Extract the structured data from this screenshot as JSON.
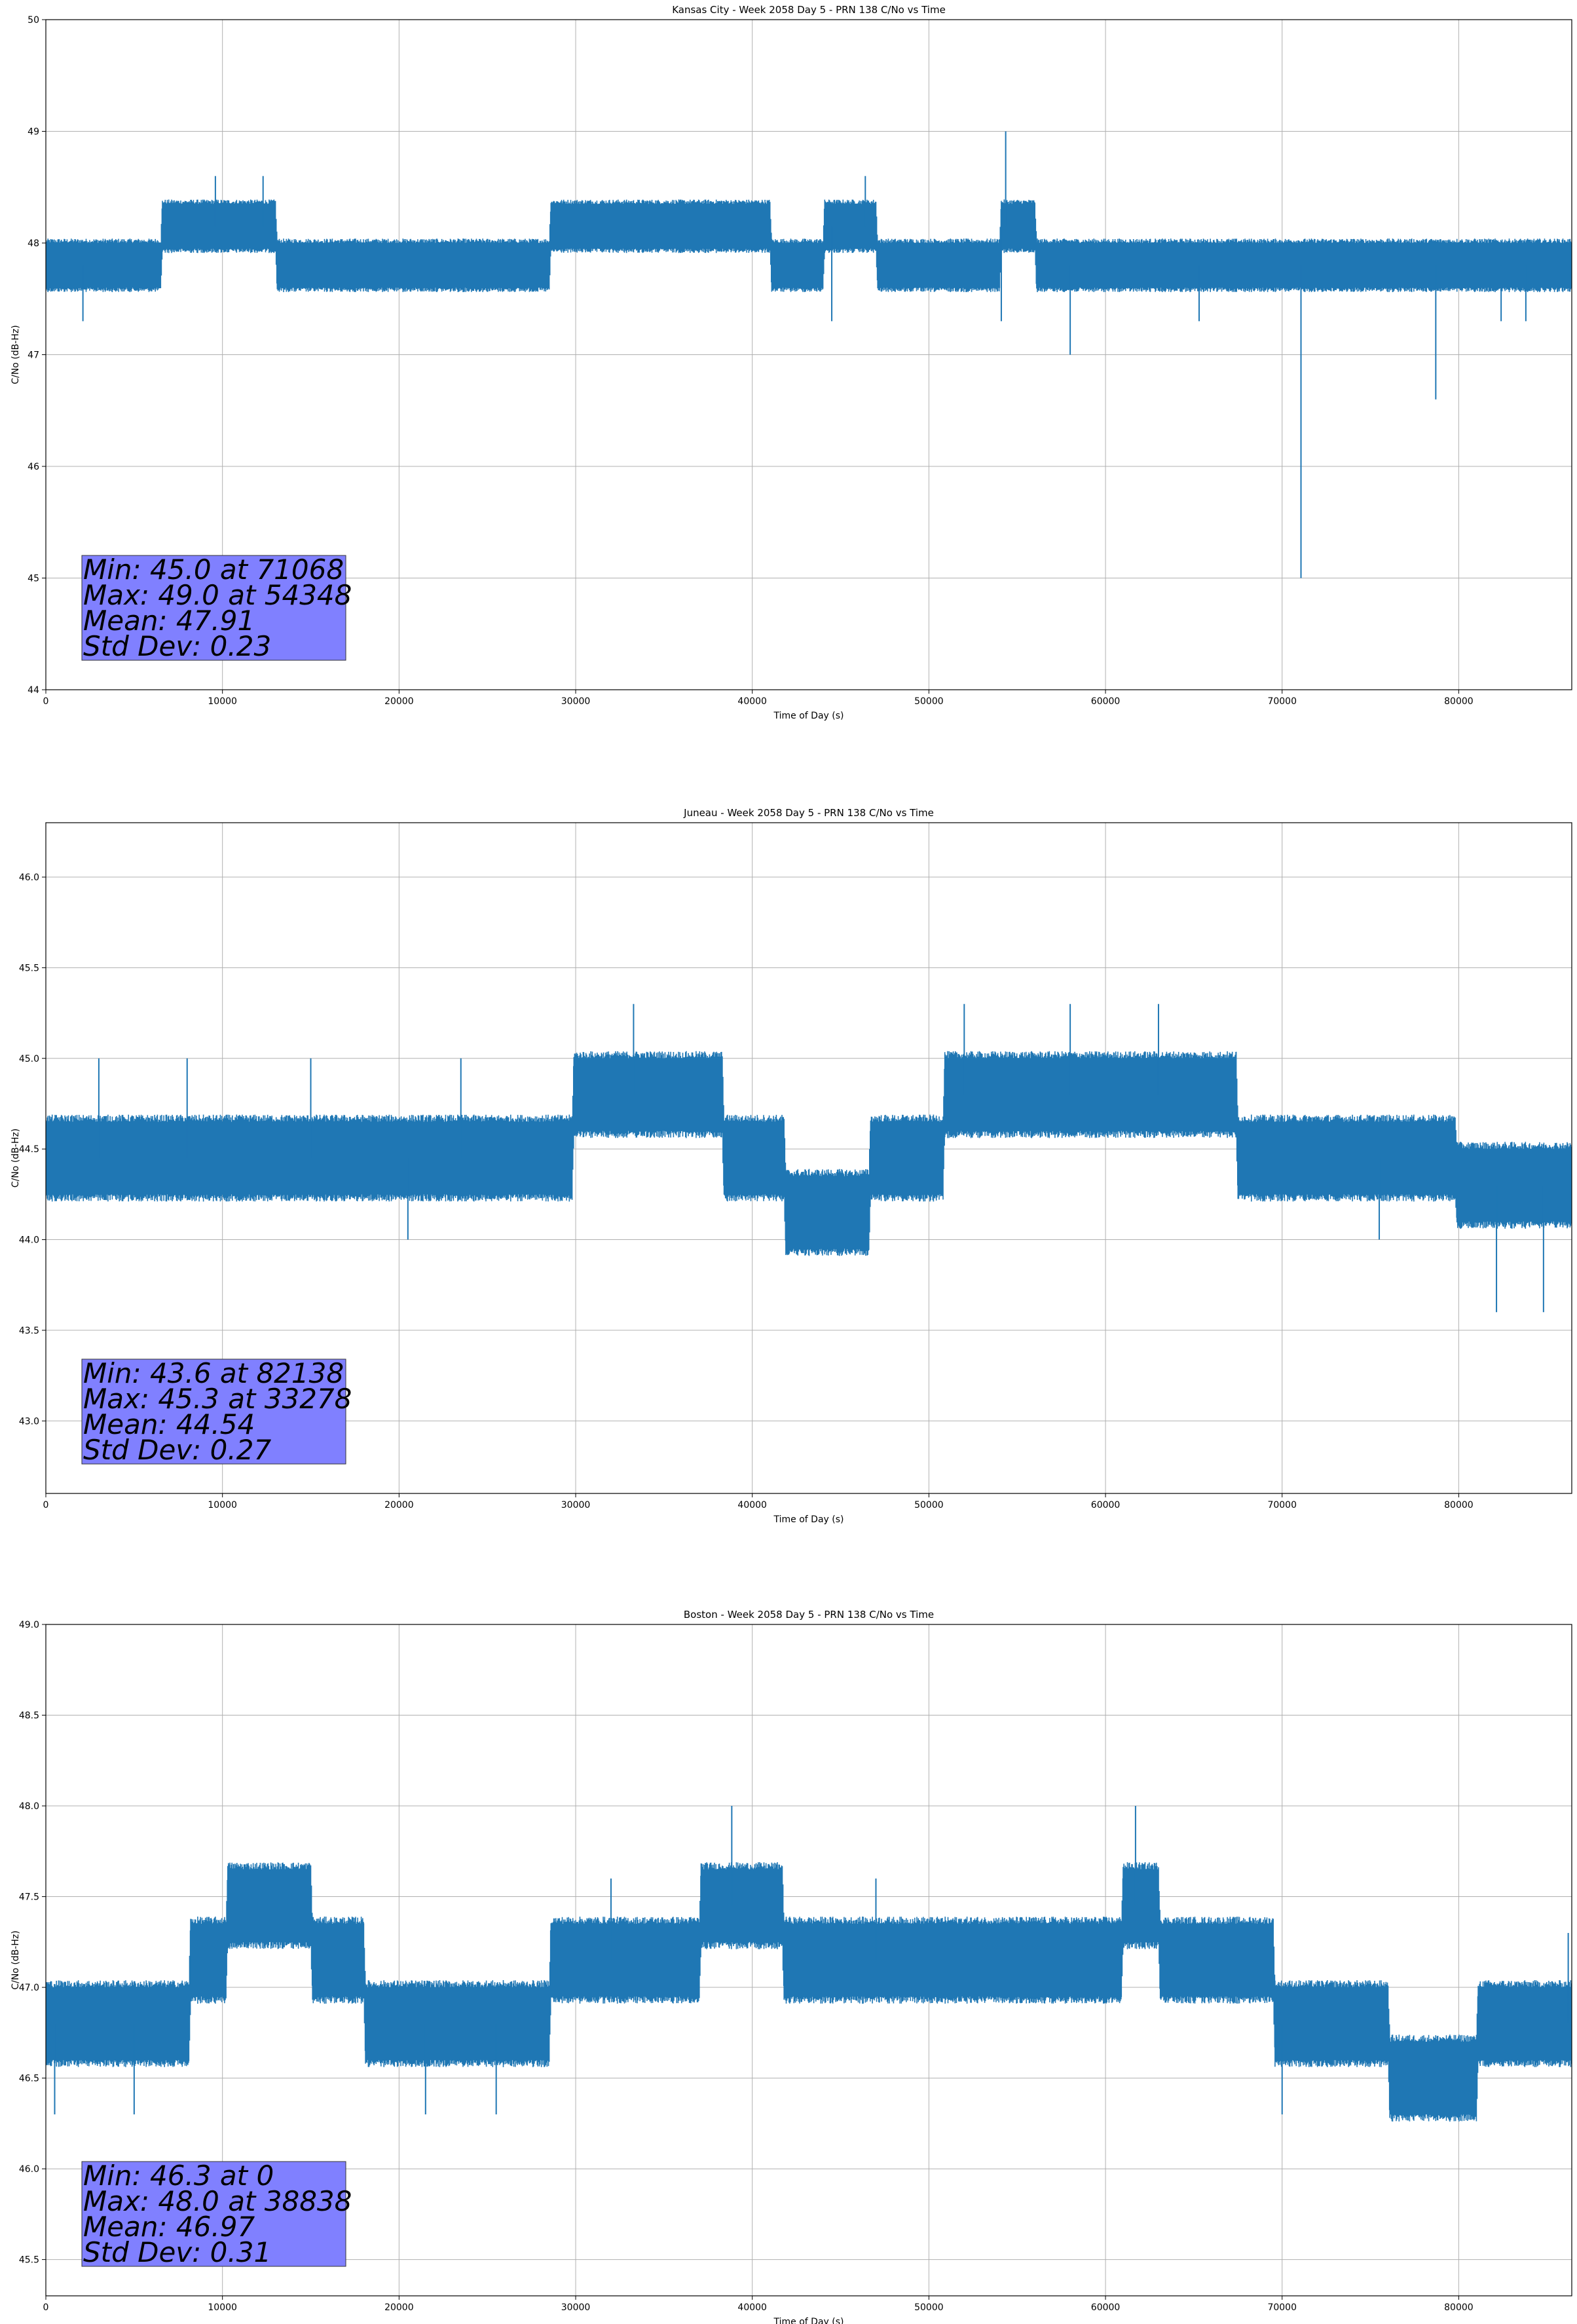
{
  "chart_data": [
    {
      "type": "line",
      "title": "Kansas City - Week 2058 Day 5 - PRN 138 C/No vs Time",
      "xlabel": "Time of Day (s)",
      "ylabel": "C/No (dB-Hz)",
      "xlim": [
        0,
        86400
      ],
      "ylim": [
        44,
        50
      ],
      "xticks": [
        0,
        10000,
        20000,
        30000,
        40000,
        50000,
        60000,
        70000,
        80000
      ],
      "yticks": [
        "44",
        "45",
        "46",
        "47",
        "48",
        "49",
        "50"
      ],
      "grid": true,
      "color": "#1f77b4",
      "series": [
        {
          "x": [
            0,
            6500,
            6600,
            13000,
            13100,
            28500,
            28600,
            41000,
            41100,
            44000,
            44100,
            47000,
            47100,
            54000,
            54100,
            56000,
            56100,
            80000,
            80100,
            86400
          ],
          "y": [
            47.8,
            47.8,
            48.15,
            48.15,
            47.8,
            47.8,
            48.15,
            48.15,
            47.8,
            47.8,
            48.15,
            48.15,
            47.8,
            47.8,
            48.15,
            48.15,
            47.8,
            47.8,
            47.8,
            47.8
          ]
        }
      ],
      "spikes": [
        {
          "x": 2100,
          "y": 47.3
        },
        {
          "x": 9600,
          "y": 48.6
        },
        {
          "x": 12300,
          "y": 48.6
        },
        {
          "x": 44500,
          "y": 47.3
        },
        {
          "x": 46400,
          "y": 48.6
        },
        {
          "x": 54348,
          "y": 49.0
        },
        {
          "x": 54100,
          "y": 47.3
        },
        {
          "x": 58000,
          "y": 47.0
        },
        {
          "x": 65300,
          "y": 47.3
        },
        {
          "x": 71068,
          "y": 45.0
        },
        {
          "x": 78700,
          "y": 46.6
        },
        {
          "x": 82400,
          "y": 47.3
        },
        {
          "x": 83800,
          "y": 47.3
        }
      ],
      "stats": {
        "line1": "Min: 45.0 at 71068",
        "line2": "Max: 49.0 at 54348",
        "line3": "Mean: 47.91",
        "line4": "Std Dev: 0.23"
      },
      "stats_box_color": "#8080ff"
    },
    {
      "type": "line",
      "title": "Juneau - Week 2058 Day 5 - PRN 138 C/No vs Time",
      "xlabel": "Time of Day (s)",
      "ylabel": "C/No (dB-Hz)",
      "xlim": [
        0,
        86400
      ],
      "ylim": [
        42.6,
        46.3
      ],
      "xticks": [
        0,
        10000,
        20000,
        30000,
        40000,
        50000,
        60000,
        70000,
        80000
      ],
      "yticks": [
        "43.0",
        "43.5",
        "44.0",
        "44.5",
        "45.0",
        "45.5",
        "46.0"
      ],
      "grid": true,
      "color": "#1f77b4",
      "series": [
        {
          "x": [
            0,
            29800,
            29900,
            38300,
            38400,
            41800,
            41900,
            46600,
            46700,
            50800,
            50900,
            67400,
            67500,
            79800,
            79900,
            86400
          ],
          "y": [
            44.45,
            44.45,
            44.8,
            44.8,
            44.45,
            44.45,
            44.15,
            44.15,
            44.45,
            44.45,
            44.8,
            44.8,
            44.45,
            44.45,
            44.3,
            44.3
          ]
        }
      ],
      "spikes": [
        {
          "x": 33278,
          "y": 45.3
        },
        {
          "x": 52000,
          "y": 45.3
        },
        {
          "x": 58000,
          "y": 45.3
        },
        {
          "x": 63000,
          "y": 45.3
        },
        {
          "x": 82138,
          "y": 43.6
        },
        {
          "x": 84800,
          "y": 43.6
        },
        {
          "x": 3000,
          "y": 45.0
        },
        {
          "x": 8000,
          "y": 45.0
        },
        {
          "x": 15000,
          "y": 45.0
        },
        {
          "x": 20500,
          "y": 44.0
        },
        {
          "x": 23500,
          "y": 45.0
        },
        {
          "x": 75500,
          "y": 44.0
        }
      ],
      "stats": {
        "line1": "Min: 43.6 at 82138",
        "line2": "Max: 45.3 at 33278",
        "line3": "Mean: 44.54",
        "line4": "Std Dev: 0.27"
      },
      "stats_box_color": "#8080ff"
    },
    {
      "type": "line",
      "title": "Boston - Week 2058 Day 5 - PRN 138 C/No vs Time",
      "xlabel": "Time of Day (s)",
      "ylabel": "C/No (dB-Hz)",
      "xlim": [
        0,
        86400
      ],
      "ylim": [
        45.3,
        49.0
      ],
      "xticks": [
        0,
        10000,
        20000,
        30000,
        40000,
        50000,
        60000,
        70000,
        80000
      ],
      "yticks": [
        "45.5",
        "46.0",
        "46.5",
        "47.0",
        "47.5",
        "48.0",
        "48.5",
        "49.0"
      ],
      "grid": true,
      "color": "#1f77b4",
      "series": [
        {
          "x": [
            0,
            8100,
            8200,
            10200,
            10300,
            15000,
            15100,
            18000,
            18100,
            28500,
            28600,
            37000,
            37100,
            41700,
            41800,
            60900,
            61000,
            63000,
            63100,
            69500,
            69600,
            76000,
            76100,
            81000,
            81100,
            86400
          ],
          "y": [
            46.8,
            46.8,
            47.15,
            47.15,
            47.45,
            47.45,
            47.15,
            47.15,
            46.8,
            46.8,
            47.15,
            47.15,
            47.45,
            47.45,
            47.15,
            47.15,
            47.45,
            47.45,
            47.15,
            47.15,
            46.8,
            46.8,
            46.5,
            46.5,
            46.8,
            46.8
          ]
        }
      ],
      "spikes": [
        {
          "x": 38838,
          "y": 48.0
        },
        {
          "x": 61700,
          "y": 48.0
        },
        {
          "x": 32000,
          "y": 47.6
        },
        {
          "x": 47000,
          "y": 47.6
        },
        {
          "x": 500,
          "y": 46.3
        },
        {
          "x": 5000,
          "y": 46.3
        },
        {
          "x": 21500,
          "y": 46.3
        },
        {
          "x": 25500,
          "y": 46.3
        },
        {
          "x": 70000,
          "y": 46.3
        },
        {
          "x": 86200,
          "y": 47.3
        }
      ],
      "stats": {
        "line1": "Min: 46.3 at 0",
        "line2": "Max: 48.0 at 38838",
        "line3": "Mean: 46.97",
        "line4": "Std Dev: 0.31"
      },
      "stats_box_color": "#8080ff"
    }
  ]
}
